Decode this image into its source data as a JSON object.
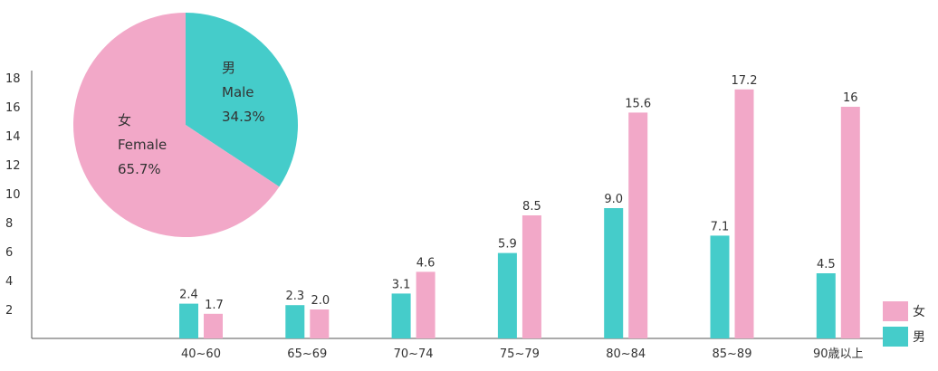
{
  "colors": {
    "male": "#45CCCA",
    "female": "#F2A8C8",
    "axis": "#555555"
  },
  "chart_data": [
    {
      "type": "bar",
      "categories": [
        "40~60",
        "65~69",
        "70~74",
        "75~79",
        "80~84",
        "85~89",
        "90歳以上"
      ],
      "series": [
        {
          "name": "男",
          "values": [
            2.4,
            2.3,
            3.1,
            5.9,
            9.0,
            7.1,
            4.5
          ],
          "labels": [
            "2.4",
            "2.3",
            "3.1",
            "5.9",
            "9.0",
            "7.1",
            "4.5"
          ]
        },
        {
          "name": "女",
          "values": [
            1.7,
            2.0,
            4.6,
            8.5,
            15.6,
            17.2,
            16
          ],
          "labels": [
            "1.7",
            "2.0",
            "4.6",
            "8.5",
            "15.6",
            "17.2",
            "16"
          ]
        }
      ],
      "ylim": [
        0,
        18
      ],
      "yticks": [
        "2",
        "4",
        "6",
        "8",
        "10",
        "12",
        "14",
        "16",
        "18"
      ],
      "legend": {
        "position": "bottom-right",
        "entries": [
          "女",
          "男"
        ]
      },
      "grid": false,
      "title": "",
      "xlabel": "",
      "ylabel": ""
    },
    {
      "type": "pie",
      "slices": [
        {
          "name": "男",
          "name_en": "Male",
          "value": 34.3,
          "label": "34.3%"
        },
        {
          "name": "女",
          "name_en": "Female",
          "value": 65.7,
          "label": "65.7%"
        }
      ]
    }
  ]
}
